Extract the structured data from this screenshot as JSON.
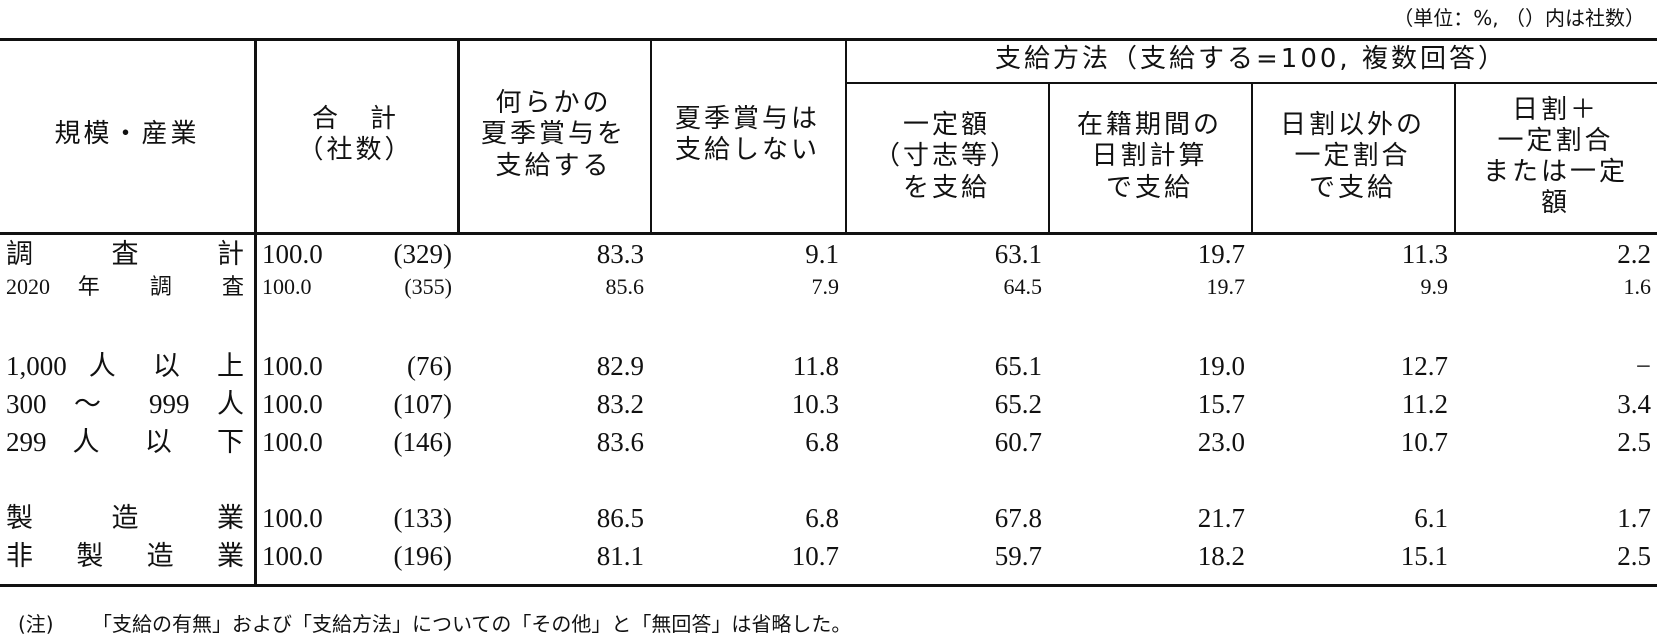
{
  "unit_note": "（単位：%, （）内は社数）",
  "header": {
    "row_label": "規模・産業",
    "total": "合　計\n（社数）",
    "some_bonus": "何らかの\n夏季賞与を\n支給する",
    "no_bonus": "夏季賞与は\n支給しない",
    "method_group": "支給方法（支給する=100, 複数回答）",
    "methods": [
      "一定額\n（寸志等）\nを支給",
      "在籍期間の\n日割計算\nで支給",
      "日割以外の\n一定割合\nで支給",
      "日割＋\n一定割合\nまたは一定\n額"
    ]
  },
  "rows": [
    {
      "label": "調 査 計",
      "total": "100.0",
      "count": "(329)",
      "values": [
        "83.3",
        "9.1",
        "63.1",
        "19.7",
        "11.3",
        "2.2"
      ]
    },
    {
      "label": "2020 年 調 査",
      "total": "100.0",
      "count": "(355)",
      "values": [
        "85.6",
        "7.9",
        "64.5",
        "19.7",
        "9.9",
        "1.6"
      ]
    },
    {
      "label": "1,000 人 以 上",
      "total": "100.0",
      "count": "(76)",
      "values": [
        "82.9",
        "11.8",
        "65.1",
        "19.0",
        "12.7",
        "−"
      ]
    },
    {
      "label": "300 ～ 999 人",
      "total": "100.0",
      "count": "(107)",
      "values": [
        "83.2",
        "10.3",
        "65.2",
        "15.7",
        "11.2",
        "3.4"
      ]
    },
    {
      "label": "299 人 以 下",
      "total": "100.0",
      "count": "(146)",
      "values": [
        "83.6",
        "6.8",
        "60.7",
        "23.0",
        "10.7",
        "2.5"
      ]
    },
    {
      "label": "製 造 業",
      "total": "100.0",
      "count": "(133)",
      "values": [
        "86.5",
        "6.8",
        "67.8",
        "21.7",
        "6.1",
        "1.7"
      ]
    },
    {
      "label": "非 製 造 業",
      "total": "100.0",
      "count": "(196)",
      "values": [
        "81.1",
        "10.7",
        "59.7",
        "18.2",
        "15.1",
        "2.5"
      ]
    }
  ],
  "note": {
    "mark": "(注)",
    "text": "「支給の有無」および「支給方法」についての「その他」と「無回答」は省略した。"
  }
}
